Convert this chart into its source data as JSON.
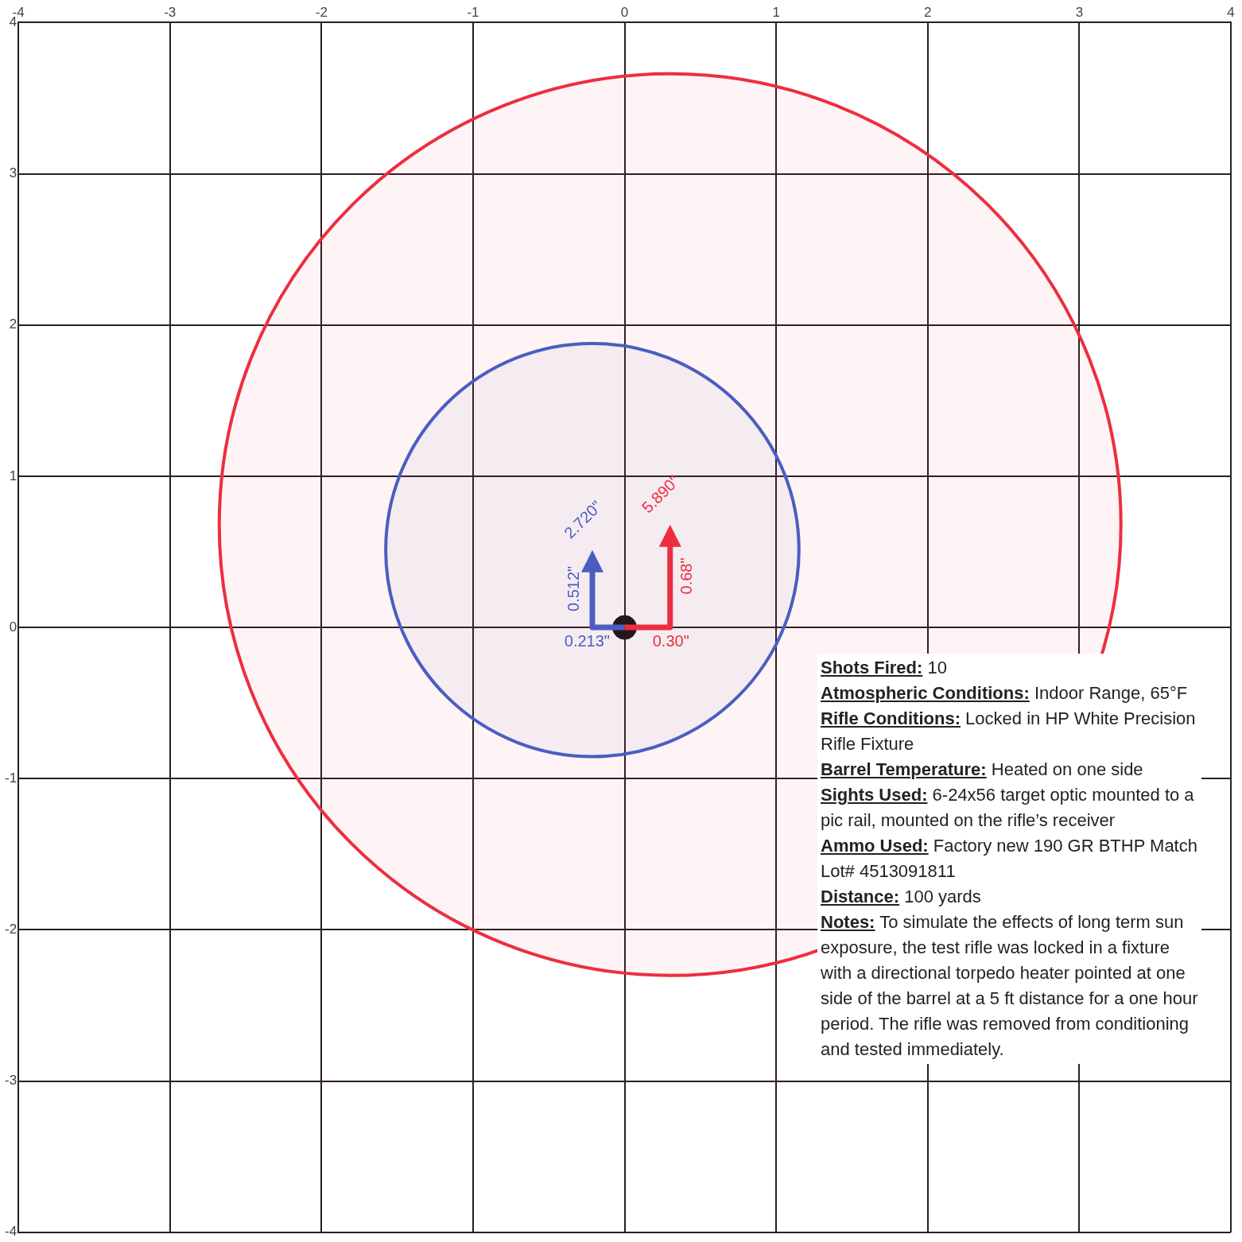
{
  "chart_data": {
    "type": "bubble",
    "xlim": [
      -4,
      4
    ],
    "ylim": [
      -4,
      4
    ],
    "xticks": [
      -4,
      -3,
      -2,
      -1,
      0,
      1,
      2,
      3,
      4
    ],
    "yticks": [
      -4,
      -3,
      -2,
      -1,
      0,
      1,
      2,
      3,
      4
    ],
    "grid": true,
    "legend": false,
    "series": [
      {
        "color": "#4a5ec0",
        "x": [
          -0.213
        ],
        "values": [
          0.512
        ],
        "sizes": [
          0.21
        ]
      },
      {
        "color": "#ec2f3f",
        "x": [
          0.3
        ],
        "values": [
          0.68
        ],
        "sizes": [
          1
        ]
      },
      {
        "type": "scatter",
        "color": "#1a1212",
        "x": [
          0
        ],
        "values": [
          0
        ],
        "marker": "circle"
      }
    ],
    "annotations": [
      "0.213\"",
      {
        "text": "0.512\"",
        "x": -0.213,
        "y": 0.512
      },
      {
        "text": "2.720\"",
        "x": -0.213,
        "y": 0.512
      },
      "0.30\"",
      {
        "text": "0.68\"",
        "x": 0.3,
        "y": 0.68
      },
      {
        "text": "5.890\"",
        "x": 0.3,
        "y": 0.68
      },
      "Shots Fired: 10",
      "Atmospheric Conditions: Indoor Range, 65°F",
      "Rifle Conditions: Locked in HP White Precision Rifle Fixture",
      "Barrel Temperature: Heated on one side",
      "Sights Used: 6-24x56 target optic mounted to a pic rail, mounted on the rifle’s receiver",
      "Ammo Used: Factory new 190 GR BTHP Match Lot# 4513091811",
      "Distance: 100 yards",
      "Notes: To simulate the effects of long term sun exposure, the test rifle was locked in a fixture with a directional torpedo heater pointed at one side of the barrel at a 5 ft distance for a one hour period.  The rifle was removed from conditioning and tested immediately."
    ]
  }
}
